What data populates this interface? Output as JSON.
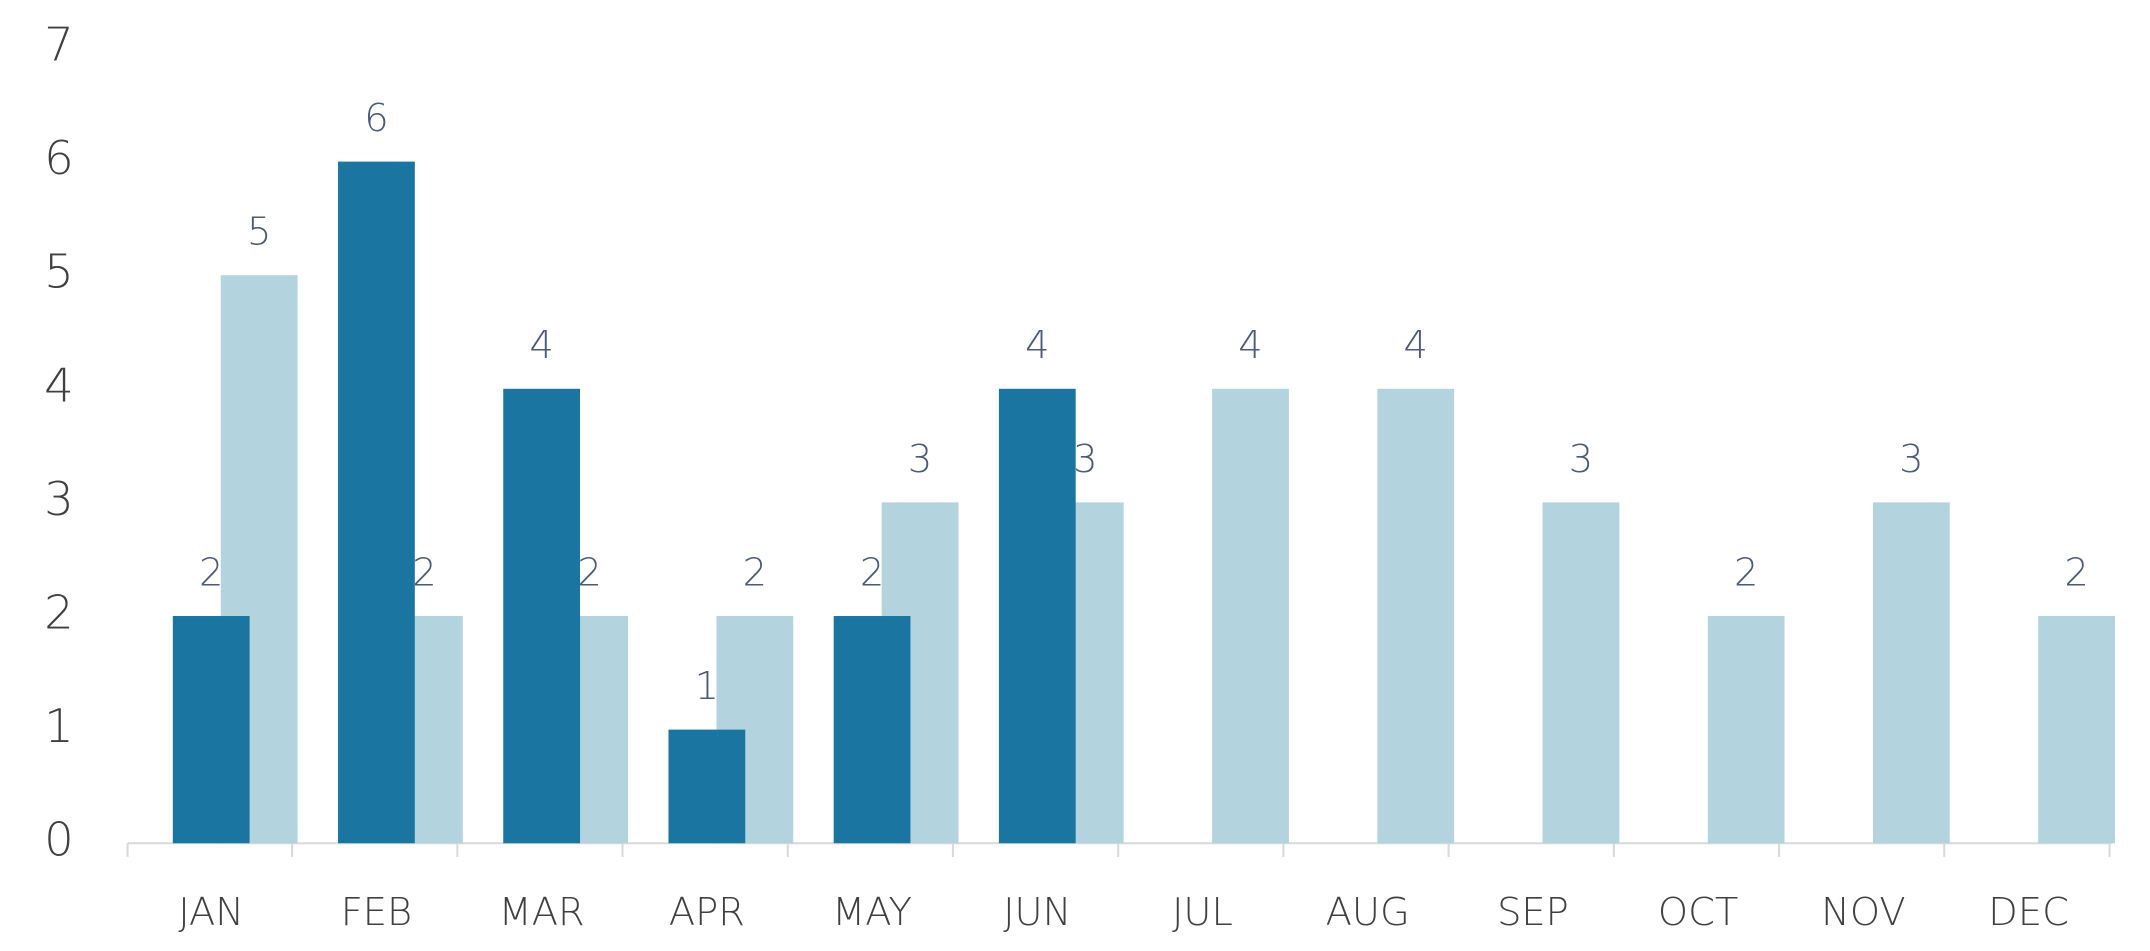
{
  "chart_data": {
    "type": "bar",
    "categories": [
      "JAN",
      "FEB",
      "MAR",
      "APR",
      "MAY",
      "JUN",
      "JUL",
      "AUG",
      "SEP",
      "OCT",
      "NOV",
      "DEC"
    ],
    "series": [
      {
        "color": "#1a76a0",
        "values": [
          2,
          6,
          4,
          1,
          2,
          4,
          null,
          null,
          null,
          null,
          null,
          null
        ]
      },
      {
        "color": "#b3d3df",
        "values": [
          5,
          2,
          2,
          2,
          3,
          3,
          4,
          4,
          3,
          2,
          3,
          2
        ]
      }
    ],
    "ylim": [
      0,
      7
    ],
    "yticks": [
      0,
      1,
      2,
      3,
      4,
      5,
      6,
      7
    ],
    "data_labels": true
  }
}
